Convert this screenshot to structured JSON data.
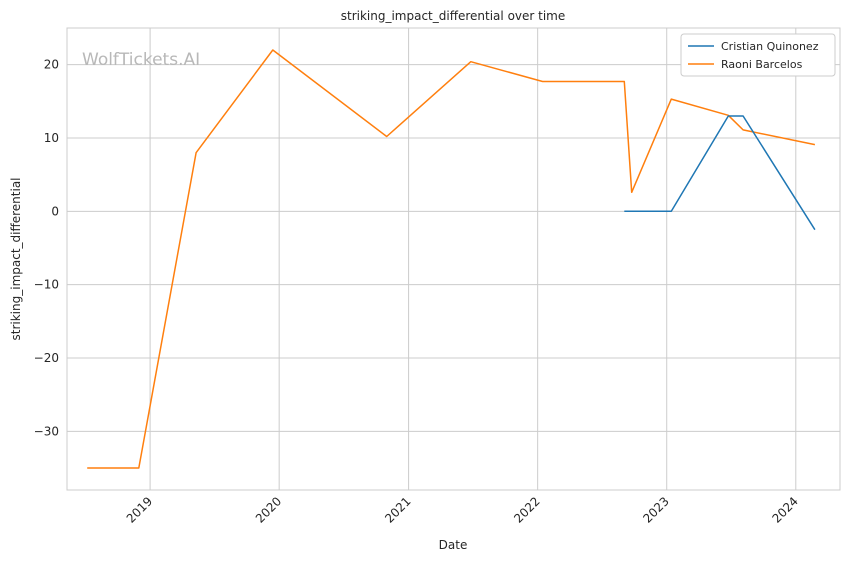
{
  "chart_data": {
    "type": "line",
    "title": "striking_impact_differential over time",
    "xlabel": "Date",
    "ylabel": "striking_impact_differential",
    "watermark": "WolfTickets.AI",
    "x_ticks": [
      "2019",
      "2020",
      "2021",
      "2022",
      "2023",
      "2024"
    ],
    "y_ticks": [
      20,
      10,
      0,
      -10,
      -20,
      -30
    ],
    "xlim": [
      "2018-05-11",
      "2024-05-05"
    ],
    "ylim": [
      -38,
      25
    ],
    "grid": true,
    "legend_position": "top-right",
    "series": [
      {
        "name": "Cristian Quinonez",
        "color": "#1f77b4",
        "points": [
          {
            "x": "2022-09-03",
            "y": 0
          },
          {
            "x": "2023-01-14",
            "y": 0
          },
          {
            "x": "2023-06-24",
            "y": 13
          },
          {
            "x": "2023-08-05",
            "y": 13
          },
          {
            "x": "2024-02-24",
            "y": -2.5
          }
        ]
      },
      {
        "name": "Raoni Barcelos",
        "color": "#ff7f0e",
        "points": [
          {
            "x": "2018-07-07",
            "y": -35
          },
          {
            "x": "2018-11-30",
            "y": -35
          },
          {
            "x": "2019-05-11",
            "y": 8
          },
          {
            "x": "2019-12-14",
            "y": 22
          },
          {
            "x": "2020-10-31",
            "y": 10.2
          },
          {
            "x": "2021-06-26",
            "y": 20.4
          },
          {
            "x": "2022-01-15",
            "y": 17.7
          },
          {
            "x": "2022-09-03",
            "y": 17.7
          },
          {
            "x": "2022-09-24",
            "y": 2.6
          },
          {
            "x": "2023-01-14",
            "y": 15.3
          },
          {
            "x": "2023-06-24",
            "y": 13.1
          },
          {
            "x": "2023-08-05",
            "y": 11.1
          },
          {
            "x": "2024-02-24",
            "y": 9.1
          }
        ]
      }
    ]
  }
}
